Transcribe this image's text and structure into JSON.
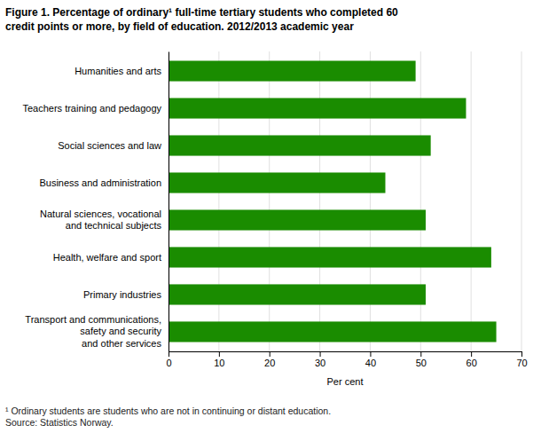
{
  "chart_data": {
    "type": "bar",
    "orientation": "horizontal",
    "title": "Figure 1. Percentage of ordinary¹ full-time tertiary students who completed 60\ncredit points or more, by field of education. 2012/2013 academic year",
    "categories": [
      "Transport and communications,\nsafety and security\nand other services",
      "Primary industries",
      "Health, welfare and sport",
      "Natural sciences, vocational\nand technical subjects",
      "Business and administration",
      "Social sciences and law",
      "Teachers training and pedagogy",
      "Humanities and arts"
    ],
    "values": [
      65,
      51,
      64,
      51,
      43,
      52,
      59,
      49
    ],
    "color": "#1a8c00",
    "xlabel": "Per cent",
    "xlim": [
      0,
      70
    ],
    "xticks": [
      0,
      10,
      20,
      30,
      40,
      50,
      60,
      70
    ],
    "grid": true,
    "footnote": "¹ Ordinary students are students who are not in continuing or distant education.\nSource: Statistics Norway."
  }
}
